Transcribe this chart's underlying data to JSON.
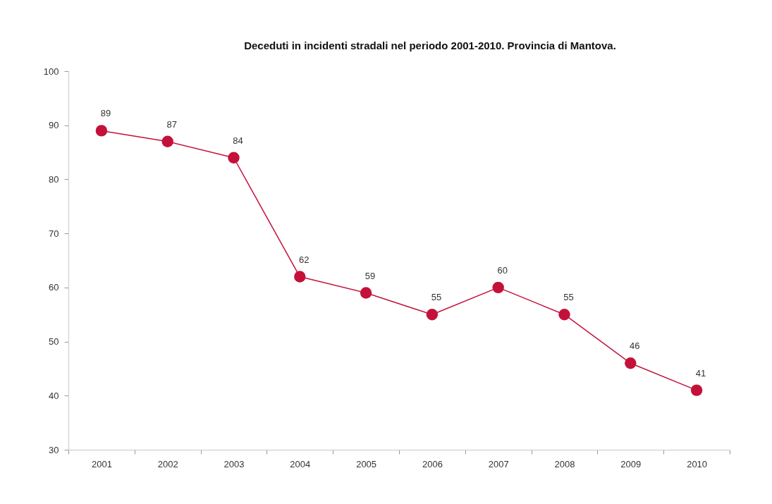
{
  "chart_data": {
    "type": "line",
    "title": "Deceduti in incidenti stradali nel periodo 2001-2010. Provincia di Mantova.",
    "categories": [
      "2001",
      "2002",
      "2003",
      "2004",
      "2005",
      "2006",
      "2007",
      "2008",
      "2009",
      "2010"
    ],
    "series": [
      {
        "color": "#c4113a",
        "values": [
          89,
          87,
          84,
          62,
          59,
          55,
          60,
          55,
          46,
          41
        ]
      }
    ],
    "ylim": [
      30,
      100
    ],
    "yticks": [
      30,
      40,
      50,
      60,
      70,
      80,
      90,
      100
    ],
    "data_labels": true,
    "marker": "circle",
    "line_style": "solid"
  }
}
